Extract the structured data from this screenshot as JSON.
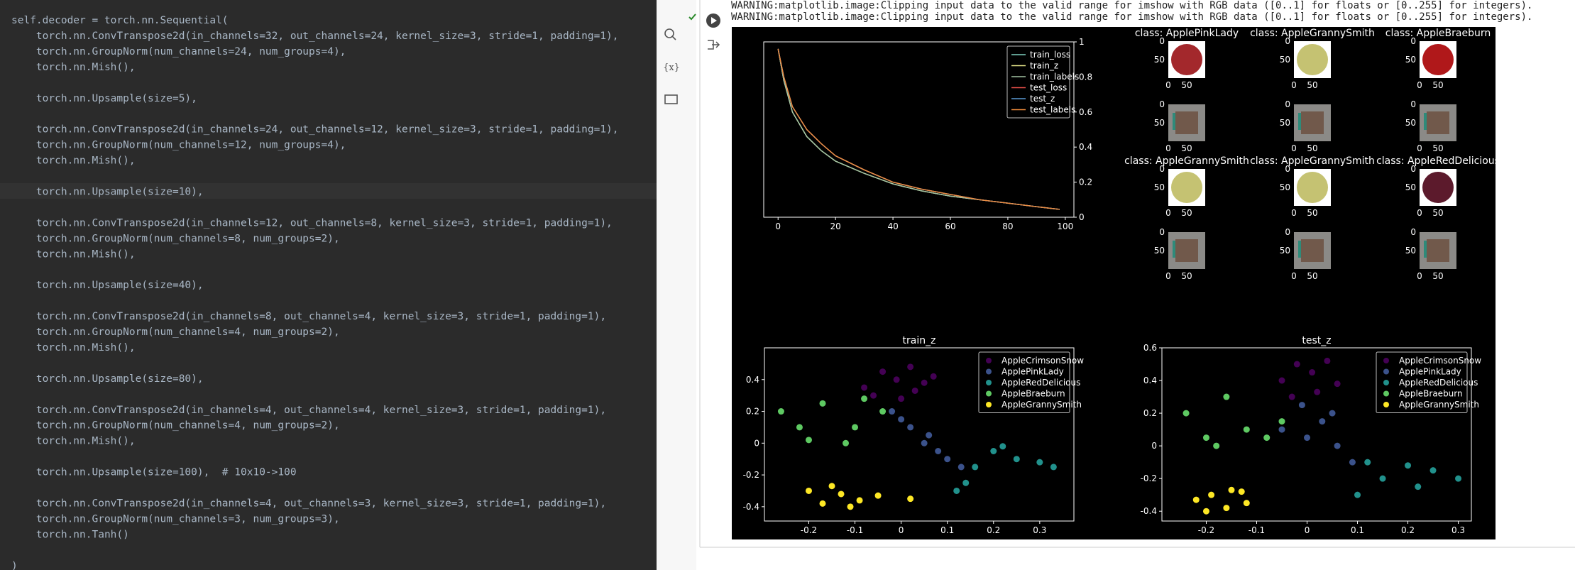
{
  "editor": {
    "lines": [
      "self.decoder = torch.nn.Sequential(",
      "    torch.nn.ConvTranspose2d(in_channels=32, out_channels=24, kernel_size=3, stride=1, padding=1),",
      "    torch.nn.GroupNorm(num_channels=24, num_groups=4),",
      "    torch.nn.Mish(),",
      null,
      "    torch.nn.Upsample(size=5),",
      null,
      "    torch.nn.ConvTranspose2d(in_channels=24, out_channels=12, kernel_size=3, stride=1, padding=1),",
      "    torch.nn.GroupNorm(num_channels=12, num_groups=4),",
      "    torch.nn.Mish(),",
      null,
      "    torch.nn.Upsample(size=10),",
      null,
      "    torch.nn.ConvTranspose2d(in_channels=12, out_channels=8, kernel_size=3, stride=1, padding=1),",
      "    torch.nn.GroupNorm(num_channels=8, num_groups=2),",
      "    torch.nn.Mish(),",
      null,
      "    torch.nn.Upsample(size=40),",
      null,
      "    torch.nn.ConvTranspose2d(in_channels=8, out_channels=4, kernel_size=3, stride=1, padding=1),",
      "    torch.nn.GroupNorm(num_channels=4, num_groups=2),",
      "    torch.nn.Mish(),",
      null,
      "    torch.nn.Upsample(size=80),",
      null,
      "    torch.nn.ConvTranspose2d(in_channels=4, out_channels=4, kernel_size=3, stride=1, padding=1),",
      "    torch.nn.GroupNorm(num_channels=4, num_groups=2),",
      "    torch.nn.Mish(),",
      null,
      "    torch.nn.Upsample(size=100),  # 10x10->100",
      null,
      "    torch.nn.ConvTranspose2d(in_channels=4, out_channels=3, kernel_size=3, stride=1, padding=1),",
      "    torch.nn.GroupNorm(num_channels=3, num_groups=3),",
      "    torch.nn.Tanh()",
      null,
      ")"
    ]
  },
  "output": {
    "warnings": [
      "WARNING:matplotlib.image:Clipping input data to the valid range for imshow with RGB data ([0..1] for floats or [0..255] for integers).",
      "WARNING:matplotlib.image:Clipping input data to the valid range for imshow with RGB data ([0..1] for floats or [0..255] for integers)."
    ]
  },
  "image_grid": {
    "titles": [
      "class: ApplePinkLady",
      "class: AppleGrannySmith",
      "class: AppleBraeburn",
      "class: AppleGrannySmith",
      "class: AppleGrannySmith",
      "class: AppleRedDelicious"
    ],
    "ticks": [
      0,
      50
    ]
  },
  "chart_data": [
    {
      "type": "line",
      "x": [
        0,
        2,
        5,
        10,
        15,
        20,
        30,
        40,
        50,
        60,
        70,
        80,
        90,
        98
      ],
      "xlim": [
        -5,
        103
      ],
      "xticks": [
        0,
        20,
        40,
        60,
        80,
        100
      ],
      "y2lim": [
        0,
        1.0
      ],
      "y2ticks": [
        0.0,
        0.2,
        0.4,
        0.6,
        0.8,
        1.0
      ],
      "legend": "upper right",
      "series": [
        {
          "name": "train_loss",
          "color": "#7fd1c0",
          "axis": "y2",
          "values": [
            0.96,
            0.78,
            0.6,
            0.46,
            0.38,
            0.32,
            0.25,
            0.19,
            0.15,
            0.12,
            0.1,
            0.08,
            0.06,
            0.045
          ]
        },
        {
          "name": "train_z",
          "color": "#e6e68a",
          "axis": "y2",
          "values": [
            0.96,
            0.78,
            0.6,
            0.46,
            0.38,
            0.32,
            0.25,
            0.19,
            0.15,
            0.12,
            0.1,
            0.08,
            0.06,
            0.045
          ]
        },
        {
          "name": "train_labels",
          "color": "#a3c2a3",
          "axis": "y2",
          "values": [
            0.96,
            0.78,
            0.6,
            0.46,
            0.38,
            0.32,
            0.25,
            0.19,
            0.15,
            0.12,
            0.1,
            0.08,
            0.06,
            0.045
          ]
        },
        {
          "name": "test_loss",
          "color": "#e8504a",
          "axis": "y2",
          "values": [
            0.96,
            0.8,
            0.63,
            0.5,
            0.42,
            0.35,
            0.27,
            0.2,
            0.16,
            0.13,
            0.1,
            0.08,
            0.06,
            0.045
          ]
        },
        {
          "name": "test_z",
          "color": "#5b9bd5",
          "axis": "y2",
          "values": [
            0.96,
            0.8,
            0.63,
            0.5,
            0.42,
            0.35,
            0.27,
            0.2,
            0.16,
            0.13,
            0.1,
            0.08,
            0.06,
            0.045
          ]
        },
        {
          "name": "test_labels",
          "color": "#f08c3c",
          "axis": "y2",
          "values": [
            0.96,
            0.8,
            0.63,
            0.5,
            0.42,
            0.35,
            0.27,
            0.2,
            0.16,
            0.13,
            0.1,
            0.08,
            0.06,
            0.045
          ]
        }
      ]
    },
    {
      "type": "scatter",
      "title": "train_z",
      "legend": "upper right",
      "xlim": [
        -0.296,
        0.374
      ],
      "xticks": [
        -0.2,
        -0.1,
        0.0,
        0.1,
        0.2,
        0.3
      ],
      "ylim": [
        -0.49,
        0.6
      ],
      "yticks": [
        -0.4,
        -0.2,
        0.0,
        0.2,
        0.4
      ],
      "series": [
        {
          "name": "AppleCrimsonSnow",
          "color": "#440154",
          "x": [
            -0.08,
            -0.04,
            -0.01,
            0.02,
            0.05,
            0.07,
            -0.06,
            0.0,
            0.03
          ],
          "y": [
            0.35,
            0.45,
            0.4,
            0.48,
            0.38,
            0.42,
            0.3,
            0.28,
            0.33
          ]
        },
        {
          "name": "ApplePinkLady",
          "color": "#3b528b",
          "x": [
            -0.02,
            0.02,
            0.05,
            0.08,
            0.1,
            0.13,
            0.0,
            0.06
          ],
          "y": [
            0.2,
            0.1,
            0.0,
            -0.05,
            -0.1,
            -0.15,
            0.15,
            0.05
          ]
        },
        {
          "name": "AppleRedDelicious",
          "color": "#21918c",
          "x": [
            0.12,
            0.16,
            0.2,
            0.25,
            0.3,
            0.33,
            0.14,
            0.22
          ],
          "y": [
            -0.3,
            -0.15,
            -0.05,
            -0.1,
            -0.12,
            -0.15,
            -0.25,
            -0.02
          ]
        },
        {
          "name": "AppleBraeburn",
          "color": "#5ec962",
          "x": [
            -0.26,
            -0.22,
            -0.17,
            -0.12,
            -0.08,
            -0.04,
            -0.2,
            -0.1
          ],
          "y": [
            0.2,
            0.1,
            0.25,
            0.0,
            0.28,
            0.2,
            0.02,
            0.1
          ]
        },
        {
          "name": "AppleGrannySmith",
          "color": "#fde725",
          "x": [
            -0.2,
            -0.17,
            -0.13,
            -0.09,
            -0.05,
            -0.15,
            -0.11,
            0.02
          ],
          "y": [
            -0.3,
            -0.38,
            -0.32,
            -0.36,
            -0.33,
            -0.27,
            -0.4,
            -0.35
          ]
        }
      ]
    },
    {
      "type": "scatter",
      "title": "test_z",
      "legend": "upper right",
      "xlim": [
        -0.288,
        0.326
      ],
      "xticks": [
        -0.2,
        -0.1,
        0.0,
        0.1,
        0.2,
        0.3
      ],
      "ylim": [
        -0.46,
        0.6
      ],
      "yticks": [
        -0.4,
        -0.2,
        0.0,
        0.2,
        0.4,
        0.6
      ],
      "series": [
        {
          "name": "AppleCrimsonSnow",
          "color": "#440154",
          "x": [
            -0.05,
            -0.02,
            0.01,
            0.04,
            0.06,
            -0.03,
            0.02
          ],
          "y": [
            0.4,
            0.5,
            0.45,
            0.52,
            0.38,
            0.3,
            0.33
          ]
        },
        {
          "name": "ApplePinkLady",
          "color": "#3b528b",
          "x": [
            -0.05,
            -0.01,
            0.03,
            0.06,
            0.09,
            0.0,
            0.05
          ],
          "y": [
            0.1,
            0.25,
            0.15,
            0.0,
            -0.1,
            0.05,
            0.2
          ]
        },
        {
          "name": "AppleRedDelicious",
          "color": "#21918c",
          "x": [
            0.1,
            0.15,
            0.2,
            0.25,
            0.3,
            0.12,
            0.22
          ],
          "y": [
            -0.3,
            -0.2,
            -0.12,
            -0.15,
            -0.2,
            -0.1,
            -0.25
          ]
        },
        {
          "name": "AppleBraeburn",
          "color": "#5ec962",
          "x": [
            -0.24,
            -0.2,
            -0.16,
            -0.12,
            -0.08,
            -0.05,
            -0.18
          ],
          "y": [
            0.2,
            0.05,
            0.3,
            0.1,
            0.05,
            0.15,
            0.0
          ]
        },
        {
          "name": "AppleGrannySmith",
          "color": "#fde725",
          "x": [
            -0.22,
            -0.19,
            -0.16,
            -0.13,
            -0.2,
            -0.15,
            -0.12
          ],
          "y": [
            -0.33,
            -0.3,
            -0.38,
            -0.28,
            -0.4,
            -0.27,
            -0.35
          ]
        }
      ]
    }
  ]
}
